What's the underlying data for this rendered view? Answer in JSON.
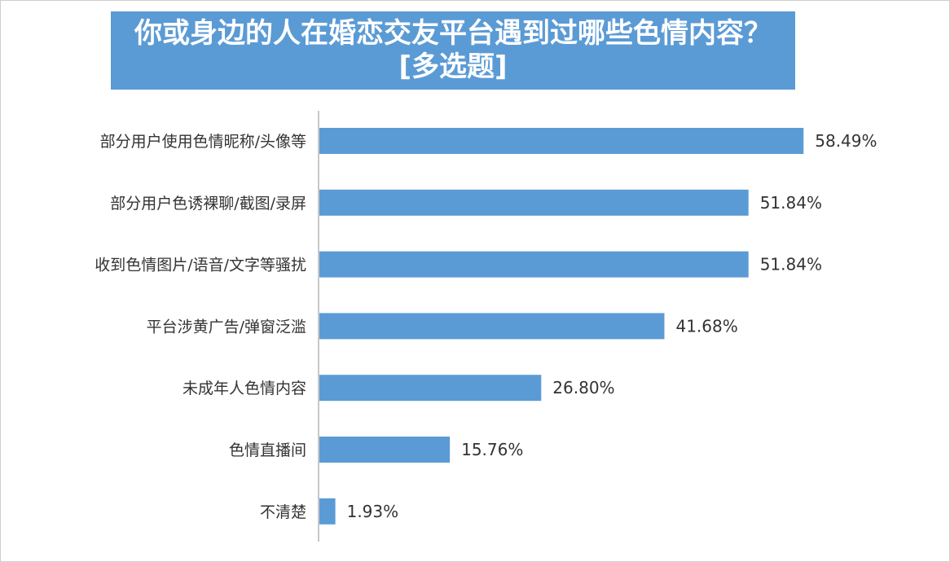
{
  "title": {
    "line1": "你或身边的人在婚恋交友平台遇到过哪些色情内容？",
    "line2": "[多选题]"
  },
  "colors": {
    "bar": "#5b9bd5",
    "title_bg": "#5b9bd5",
    "axis": "#c8c8c8",
    "text": "#333333"
  },
  "chart_data": {
    "type": "bar",
    "orientation": "horizontal",
    "title": "你或身边的人在婚恋交友平台遇到过哪些色情内容？[多选题]",
    "categories": [
      "部分用户使用色情昵称/头像等",
      "部分用户色诱裸聊/截图/录屏",
      "收到色情图片/语音/文字等骚扰",
      "平台涉黄广告/弹窗泛滥",
      "未成年人色情内容",
      "色情直播间",
      "不清楚"
    ],
    "values": [
      58.49,
      51.84,
      51.84,
      41.68,
      26.8,
      15.76,
      1.93
    ],
    "value_labels": [
      "58.49%",
      "51.84%",
      "51.84%",
      "41.68%",
      "26.80%",
      "15.76%",
      "1.93%"
    ],
    "unit": "%",
    "xlim": [
      0,
      100
    ],
    "grid": false,
    "legend": false
  }
}
